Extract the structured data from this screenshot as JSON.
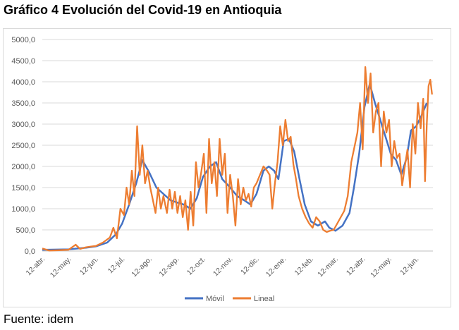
{
  "title": "Gráfico 4 Evolución del Covid-19 en Antioquia",
  "source": "Fuente: idem",
  "colors": {
    "movil": "#4472c4",
    "lineal": "#ed7d31",
    "grid": "#d9d9d9",
    "axis_text": "#595959"
  },
  "chart_data": {
    "type": "line",
    "ylim": [
      0,
      5000
    ],
    "yticks": [
      "0,0",
      "500,0",
      "1000,0",
      "1500,0",
      "2000,0",
      "2500,0",
      "3000,0",
      "3500,0",
      "4000,0",
      "4500,0",
      "5000,0"
    ],
    "xticks": [
      "12-abr.",
      "12-may.",
      "12-jun.",
      "12-jul.",
      "12-ago.",
      "12-sep.",
      "12-oct.",
      "12-nov.",
      "12-dic.",
      "12-ene.",
      "12-feb.",
      "12-mar.",
      "12-abr.",
      "12-may.",
      "12-jun."
    ],
    "x_start": "2020-04-12",
    "legend_position": "bottom",
    "series": [
      {
        "name": "Móvil",
        "points": [
          [
            "2020-04-12",
            30
          ],
          [
            "2020-05-12",
            40
          ],
          [
            "2020-06-01",
            80
          ],
          [
            "2020-06-12",
            110
          ],
          [
            "2020-06-25",
            200
          ],
          [
            "2020-07-05",
            400
          ],
          [
            "2020-07-12",
            650
          ],
          [
            "2020-07-20",
            1100
          ],
          [
            "2020-07-28",
            1600
          ],
          [
            "2020-08-04",
            2150
          ],
          [
            "2020-08-12",
            1850
          ],
          [
            "2020-08-20",
            1500
          ],
          [
            "2020-08-28",
            1350
          ],
          [
            "2020-09-05",
            1200
          ],
          [
            "2020-09-12",
            1150
          ],
          [
            "2020-09-20",
            1100
          ],
          [
            "2020-09-28",
            1000
          ],
          [
            "2020-10-05",
            1250
          ],
          [
            "2020-10-12",
            1750
          ],
          [
            "2020-10-20",
            2000
          ],
          [
            "2020-10-27",
            2100
          ],
          [
            "2020-11-03",
            1700
          ],
          [
            "2020-11-12",
            1500
          ],
          [
            "2020-11-20",
            1300
          ],
          [
            "2020-11-28",
            1200
          ],
          [
            "2020-12-05",
            1100
          ],
          [
            "2020-12-12",
            1350
          ],
          [
            "2020-12-20",
            1900
          ],
          [
            "2020-12-26",
            2000
          ],
          [
            "2021-01-01",
            1900
          ],
          [
            "2021-01-06",
            1700
          ],
          [
            "2021-01-12",
            2600
          ],
          [
            "2021-01-18",
            2650
          ],
          [
            "2021-01-24",
            2350
          ],
          [
            "2021-01-30",
            1700
          ],
          [
            "2021-02-05",
            1100
          ],
          [
            "2021-02-12",
            700
          ],
          [
            "2021-02-20",
            600
          ],
          [
            "2021-02-28",
            700
          ],
          [
            "2021-03-05",
            550
          ],
          [
            "2021-03-12",
            480
          ],
          [
            "2021-03-20",
            600
          ],
          [
            "2021-03-28",
            900
          ],
          [
            "2021-04-02",
            1500
          ],
          [
            "2021-04-08",
            2300
          ],
          [
            "2021-04-14",
            3400
          ],
          [
            "2021-04-20",
            3950
          ],
          [
            "2021-04-26",
            3500
          ],
          [
            "2021-05-02",
            3100
          ],
          [
            "2021-05-08",
            2700
          ],
          [
            "2021-05-14",
            2300
          ],
          [
            "2021-05-20",
            2150
          ],
          [
            "2021-05-26",
            1800
          ],
          [
            "2021-06-01",
            2200
          ],
          [
            "2021-06-06",
            2850
          ],
          [
            "2021-06-12",
            2950
          ],
          [
            "2021-06-18",
            3200
          ],
          [
            "2021-06-24",
            3500
          ]
        ]
      },
      {
        "name": "Lineal",
        "points": [
          [
            "2020-04-12",
            60
          ],
          [
            "2020-04-20",
            10
          ],
          [
            "2020-05-01",
            20
          ],
          [
            "2020-05-12",
            30
          ],
          [
            "2020-05-20",
            150
          ],
          [
            "2020-05-25",
            50
          ],
          [
            "2020-06-01",
            90
          ],
          [
            "2020-06-12",
            120
          ],
          [
            "2020-06-20",
            200
          ],
          [
            "2020-06-28",
            320
          ],
          [
            "2020-07-02",
            550
          ],
          [
            "2020-07-06",
            300
          ],
          [
            "2020-07-10",
            1000
          ],
          [
            "2020-07-14",
            850
          ],
          [
            "2020-07-17",
            1500
          ],
          [
            "2020-07-20",
            1100
          ],
          [
            "2020-07-23",
            1900
          ],
          [
            "2020-07-26",
            1300
          ],
          [
            "2020-07-29",
            2950
          ],
          [
            "2020-08-01",
            1800
          ],
          [
            "2020-08-04",
            2500
          ],
          [
            "2020-08-07",
            1600
          ],
          [
            "2020-08-10",
            1900
          ],
          [
            "2020-08-13",
            1500
          ],
          [
            "2020-08-16",
            1200
          ],
          [
            "2020-08-19",
            900
          ],
          [
            "2020-08-22",
            1500
          ],
          [
            "2020-08-25",
            1000
          ],
          [
            "2020-08-28",
            1300
          ],
          [
            "2020-09-01",
            900
          ],
          [
            "2020-09-04",
            1450
          ],
          [
            "2020-09-07",
            1000
          ],
          [
            "2020-09-10",
            1400
          ],
          [
            "2020-09-13",
            900
          ],
          [
            "2020-09-16",
            1300
          ],
          [
            "2020-09-19",
            800
          ],
          [
            "2020-09-22",
            1200
          ],
          [
            "2020-09-25",
            500
          ],
          [
            "2020-09-28",
            1400
          ],
          [
            "2020-10-01",
            600
          ],
          [
            "2020-10-04",
            2100
          ],
          [
            "2020-10-07",
            1500
          ],
          [
            "2020-10-10",
            1850
          ],
          [
            "2020-10-13",
            2300
          ],
          [
            "2020-10-16",
            900
          ],
          [
            "2020-10-19",
            2650
          ],
          [
            "2020-10-22",
            1600
          ],
          [
            "2020-10-25",
            2100
          ],
          [
            "2020-10-28",
            1300
          ],
          [
            "2020-10-31",
            2650
          ],
          [
            "2020-11-03",
            1800
          ],
          [
            "2020-11-06",
            2300
          ],
          [
            "2020-11-09",
            900
          ],
          [
            "2020-11-12",
            1800
          ],
          [
            "2020-11-15",
            1300
          ],
          [
            "2020-11-18",
            600
          ],
          [
            "2020-11-21",
            1700
          ],
          [
            "2020-11-24",
            1100
          ],
          [
            "2020-11-27",
            1500
          ],
          [
            "2020-11-30",
            1200
          ],
          [
            "2020-12-03",
            1350
          ],
          [
            "2020-12-06",
            1050
          ],
          [
            "2020-12-09",
            1500
          ],
          [
            "2020-12-12",
            1600
          ],
          [
            "2020-12-16",
            1800
          ],
          [
            "2020-12-20",
            2000
          ],
          [
            "2020-12-24",
            1900
          ],
          [
            "2020-12-27",
            1800
          ],
          [
            "2020-12-30",
            1000
          ],
          [
            "2021-01-02",
            1600
          ],
          [
            "2021-01-05",
            2100
          ],
          [
            "2021-01-08",
            2950
          ],
          [
            "2021-01-11",
            2500
          ],
          [
            "2021-01-14",
            3100
          ],
          [
            "2021-01-17",
            2600
          ],
          [
            "2021-01-20",
            2700
          ],
          [
            "2021-01-23",
            2050
          ],
          [
            "2021-01-26",
            1700
          ],
          [
            "2021-01-29",
            1300
          ],
          [
            "2021-02-02",
            1000
          ],
          [
            "2021-02-06",
            800
          ],
          [
            "2021-02-10",
            650
          ],
          [
            "2021-02-14",
            550
          ],
          [
            "2021-02-18",
            800
          ],
          [
            "2021-02-22",
            700
          ],
          [
            "2021-02-26",
            500
          ],
          [
            "2021-03-02",
            450
          ],
          [
            "2021-03-06",
            480
          ],
          [
            "2021-03-10",
            500
          ],
          [
            "2021-03-14",
            650
          ],
          [
            "2021-03-18",
            800
          ],
          [
            "2021-03-22",
            950
          ],
          [
            "2021-03-26",
            1300
          ],
          [
            "2021-03-30",
            2100
          ],
          [
            "2021-04-03",
            2500
          ],
          [
            "2021-04-06",
            2800
          ],
          [
            "2021-04-09",
            3500
          ],
          [
            "2021-04-12",
            2400
          ],
          [
            "2021-04-15",
            4350
          ],
          [
            "2021-04-18",
            3500
          ],
          [
            "2021-04-21",
            4200
          ],
          [
            "2021-04-24",
            2800
          ],
          [
            "2021-04-27",
            3300
          ],
          [
            "2021-04-30",
            3500
          ],
          [
            "2021-05-03",
            2000
          ],
          [
            "2021-05-06",
            3300
          ],
          [
            "2021-05-09",
            2800
          ],
          [
            "2021-05-12",
            3100
          ],
          [
            "2021-05-15",
            2000
          ],
          [
            "2021-05-18",
            2600
          ],
          [
            "2021-05-21",
            2200
          ],
          [
            "2021-05-24",
            2300
          ],
          [
            "2021-05-27",
            1550
          ],
          [
            "2021-05-30",
            2000
          ],
          [
            "2021-06-02",
            2400
          ],
          [
            "2021-06-05",
            1500
          ],
          [
            "2021-06-08",
            3000
          ],
          [
            "2021-06-11",
            2300
          ],
          [
            "2021-06-14",
            3500
          ],
          [
            "2021-06-17",
            2900
          ],
          [
            "2021-06-20",
            3600
          ],
          [
            "2021-06-22",
            1650
          ],
          [
            "2021-06-24",
            3000
          ],
          [
            "2021-06-26",
            3900
          ],
          [
            "2021-06-28",
            4050
          ],
          [
            "2021-06-30",
            3700
          ]
        ]
      }
    ]
  }
}
